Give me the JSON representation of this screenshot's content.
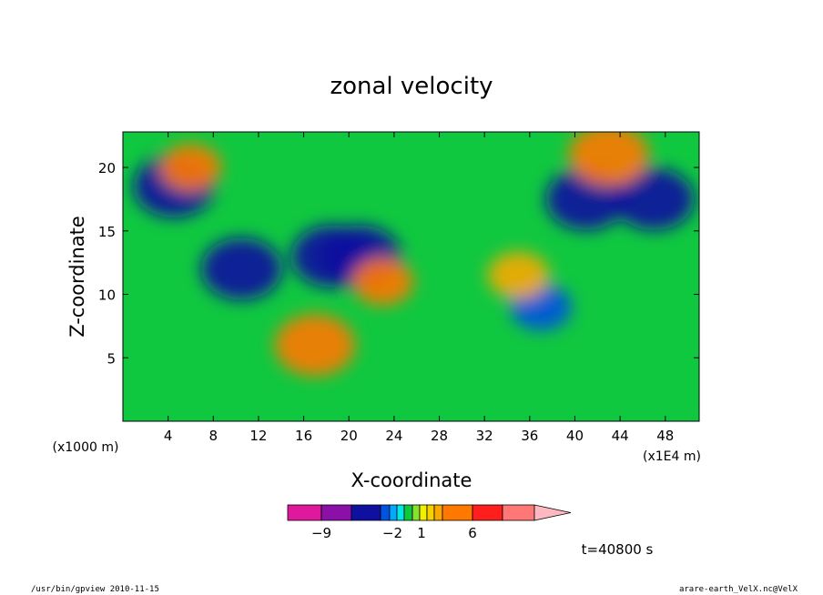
{
  "chart_data": {
    "type": "heatmap",
    "title": "zonal velocity",
    "xlabel": "X-coordinate",
    "ylabel": "Z-coordinate",
    "x_unit_left": "(x1000 m)",
    "x_unit_right": "(x1E4 m)",
    "x_ticks": [
      "4",
      "8",
      "12",
      "16",
      "20",
      "24",
      "28",
      "32",
      "36",
      "40",
      "44",
      "48"
    ],
    "y_ticks": [
      "5",
      "10",
      "15",
      "20"
    ],
    "xlim": [
      0,
      51
    ],
    "ylim": [
      0,
      22.8
    ],
    "colorbar": {
      "labels": [
        {
          "value": -9,
          "text": "−9"
        },
        {
          "value": -2,
          "text": "−2"
        },
        {
          "value": 1,
          "text": "1"
        },
        {
          "value": 6,
          "text": "6"
        }
      ],
      "colors": [
        "#e0189c",
        "#8a10a8",
        "#1010a0",
        "#0052e0",
        "#00aaff",
        "#00e8e8",
        "#10c840",
        "#88e030",
        "#f0f000",
        "#f8d000",
        "#f8a800",
        "#ff7800",
        "#ff1e1e",
        "#ff7878",
        "#ffb8c0"
      ]
    },
    "time_label": "t=40800 s",
    "features": [
      {
        "x": 4.5,
        "z": 18.5,
        "u": -6,
        "label": "negative core"
      },
      {
        "x": 10.5,
        "z": 12,
        "u": -5,
        "label": "negative core"
      },
      {
        "x": 18.5,
        "z": 13,
        "u": -6,
        "label": "negative core"
      },
      {
        "x": 21,
        "z": 13,
        "u": -6,
        "label": "negative core"
      },
      {
        "x": 37,
        "z": 9,
        "u": -3,
        "label": "negative core"
      },
      {
        "x": 41,
        "z": 17.5,
        "u": -6,
        "label": "negative core"
      },
      {
        "x": 47,
        "z": 17.5,
        "u": -5,
        "label": "negative core"
      },
      {
        "x": 6,
        "z": 20,
        "u": 4,
        "label": "positive core"
      },
      {
        "x": 17,
        "z": 6,
        "u": 5,
        "label": "positive core"
      },
      {
        "x": 23,
        "z": 11,
        "u": 4,
        "label": "positive core"
      },
      {
        "x": 35,
        "z": 11.5,
        "u": 3,
        "label": "positive core"
      },
      {
        "x": 43,
        "z": 21,
        "u": 5,
        "label": "positive core"
      }
    ]
  },
  "footer": {
    "left": "/usr/bin/gpview   2010-11-15",
    "right": "arare-earth_VelX.nc@VelX"
  }
}
